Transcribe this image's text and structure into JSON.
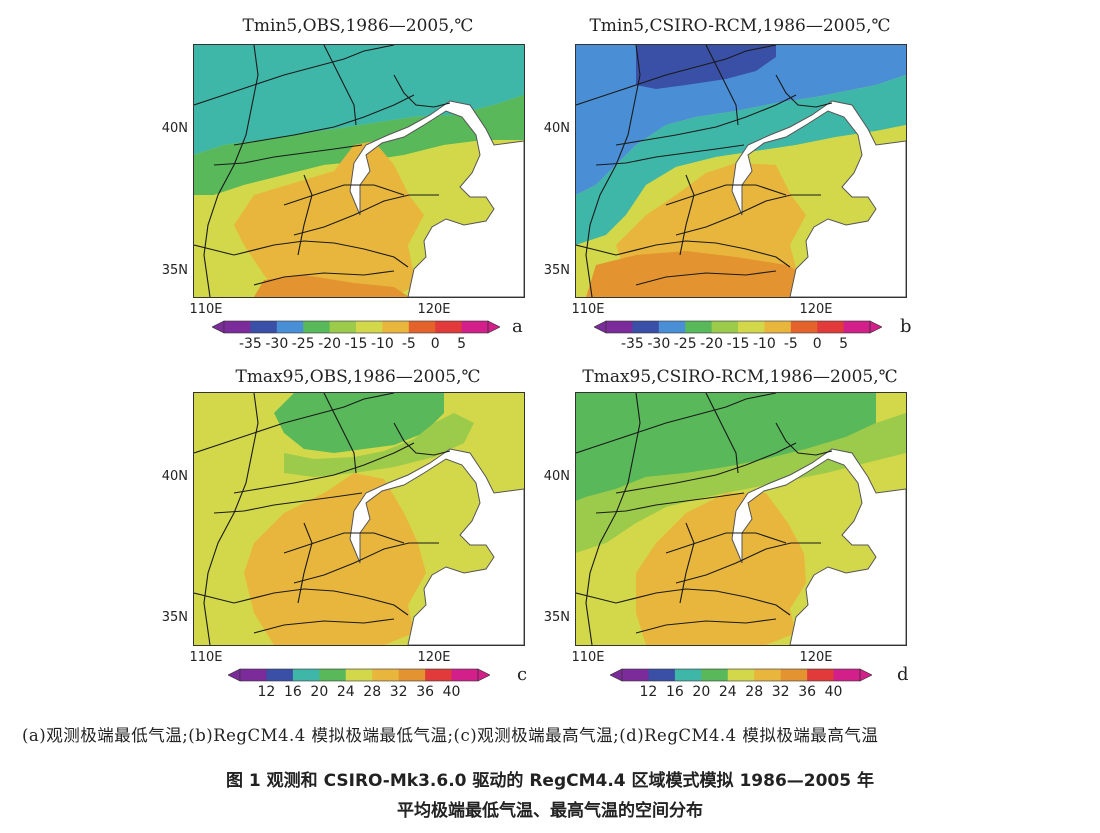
{
  "chart_data": [
    {
      "id": "a",
      "type": "heatmap",
      "title": "Tmin5,OBS,1986—2005,℃",
      "lat_ticks": [
        "40N",
        "35N"
      ],
      "lon_ticks": [
        "110E",
        "120E"
      ],
      "colorbar_ticks": [
        "-35",
        "-30",
        "-25",
        "-20",
        "-15",
        "-10",
        "-5",
        "0",
        "5"
      ],
      "colors": [
        "#7b2b9a",
        "#3a4fa6",
        "#4a8fd6",
        "#3fb7a8",
        "#58b85a",
        "#9cca4a",
        "#d2d84a",
        "#e8b63c",
        "#e3932f",
        "#e4622c",
        "#e23a3a",
        "#d21f8a"
      ],
      "regions": {
        "north": "-20 to -25",
        "central": "-15 to -10",
        "south": "-10 to -5"
      }
    },
    {
      "id": "b",
      "type": "heatmap",
      "title": "Tmin5,CSIRO-RCM,1986—2005,℃",
      "lat_ticks": [
        "40N",
        "35N"
      ],
      "lon_ticks": [
        "110E",
        "120E"
      ],
      "colorbar_ticks": [
        "-35",
        "-30",
        "-25",
        "-20",
        "-15",
        "-10",
        "-5",
        "0",
        "5"
      ],
      "regions": {
        "north": "-30 to -25",
        "central": "-15 to -10",
        "south": "-10 to -5"
      }
    },
    {
      "id": "c",
      "type": "heatmap",
      "title": "Tmax95,OBS,1986—2005,℃",
      "lat_ticks": [
        "40N",
        "35N"
      ],
      "lon_ticks": [
        "110E",
        "120E"
      ],
      "colorbar_ticks": [
        "12",
        "16",
        "20",
        "24",
        "28",
        "32",
        "36",
        "40"
      ],
      "regions": {
        "north": "28 to 32",
        "central": "32 to 36",
        "south": "32 to 36"
      }
    },
    {
      "id": "d",
      "type": "heatmap",
      "title": "Tmax95,CSIRO-RCM,1986—2005,℃",
      "lat_ticks": [
        "40N",
        "35N"
      ],
      "lon_ticks": [
        "110E",
        "120E"
      ],
      "colorbar_ticks": [
        "12",
        "16",
        "20",
        "24",
        "28",
        "32",
        "36",
        "40"
      ],
      "regions": {
        "north": "28 to 32",
        "central": "32 to 36",
        "south": "32 to 36"
      }
    }
  ],
  "panel_letters": [
    "a",
    "b",
    "c",
    "d"
  ],
  "caption_sub": "(a)观测极端最低气温;(b)RegCM4.4 模拟极端最低气温;(c)观测极端最高气温;(d)RegCM4.4 模拟极端最高气温",
  "figure_title_line1": "图 1  观测和 CSIRO-Mk3.6.0 驱动的 RegCM4.4 区域模式模拟 1986—2005 年",
  "figure_title_line2": "平均极端最低气温、最高气温的空间分布"
}
